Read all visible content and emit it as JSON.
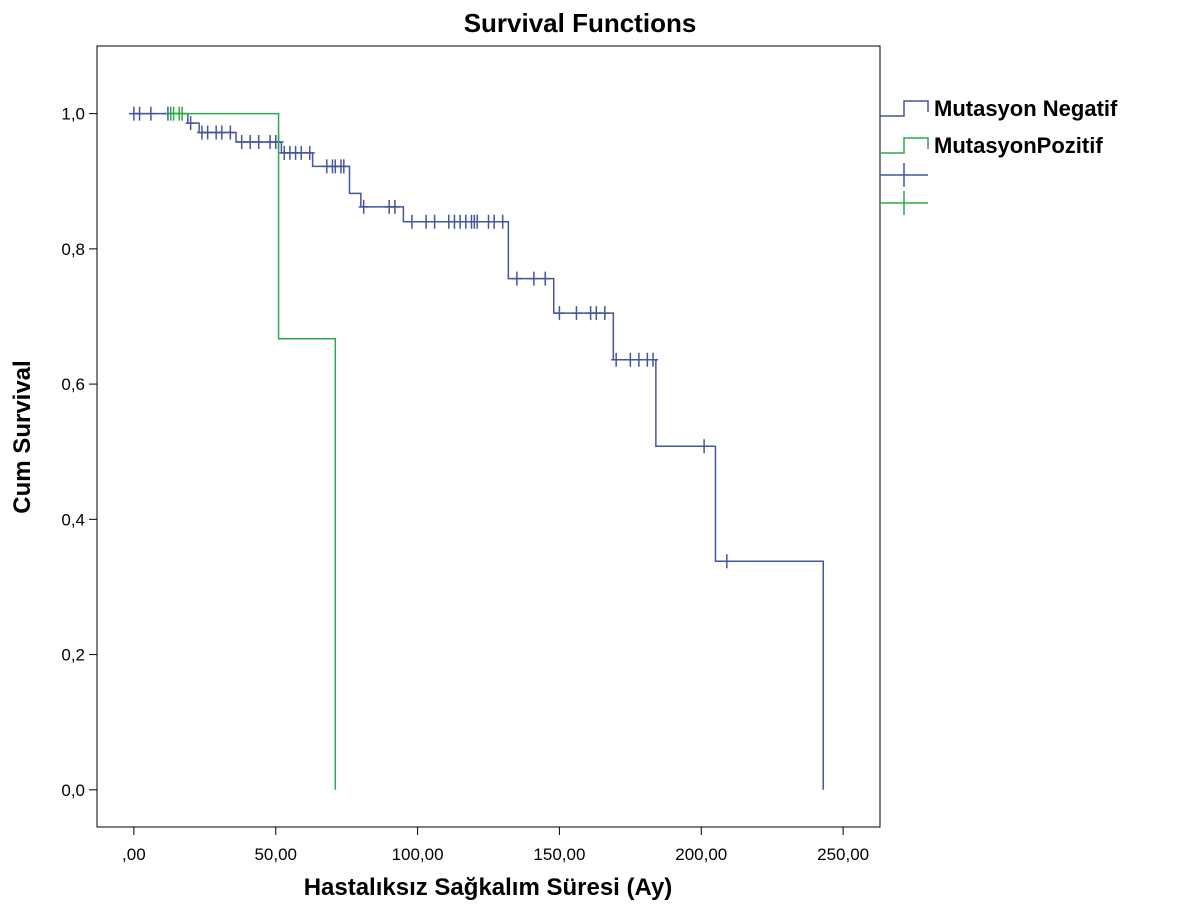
{
  "chart_data": {
    "type": "line",
    "subtype": "kaplan-meier step survival curve with censor ticks",
    "title": "Survival Functions",
    "xlabel": "Hastalıksız Sağkalım Süresi (Ay)",
    "ylabel": "Cum Survival",
    "xlim": [
      -13,
      263
    ],
    "ylim": [
      -0.055,
      1.1
    ],
    "x_ticks": [
      0,
      50,
      100,
      150,
      200,
      250
    ],
    "x_tick_labels": [
      ",00",
      "50,00",
      "100,00",
      "150,00",
      "200,00",
      "250,00"
    ],
    "y_ticks": [
      0,
      0.2,
      0.4,
      0.6,
      0.8,
      1.0
    ],
    "y_tick_labels": [
      "0,0",
      "0,2",
      "0,4",
      "0,6",
      "0,8",
      "1,0"
    ],
    "grid": false,
    "legend_position": "right-outside-top",
    "series": [
      {
        "name": "Mutasyon Negatif",
        "color": "#44569c",
        "steps": [
          [
            0,
            1.0
          ],
          [
            19,
            0.986
          ],
          [
            23,
            0.972
          ],
          [
            36,
            0.958
          ],
          [
            52,
            0.942
          ],
          [
            63,
            0.922
          ],
          [
            76,
            0.882
          ],
          [
            80,
            0.862
          ],
          [
            95,
            0.84
          ],
          [
            132,
            0.756
          ],
          [
            148,
            0.705
          ],
          [
            169,
            0.636
          ],
          [
            184,
            0.508
          ],
          [
            205,
            0.338
          ],
          [
            243,
            0.0
          ]
        ],
        "end_x": 243,
        "censored": [
          [
            0,
            1.0
          ],
          [
            2,
            1.0
          ],
          [
            6,
            1.0
          ],
          [
            12,
            1.0
          ],
          [
            20,
            0.986
          ],
          [
            24,
            0.972
          ],
          [
            26,
            0.972
          ],
          [
            29,
            0.972
          ],
          [
            31,
            0.972
          ],
          [
            34,
            0.972
          ],
          [
            38,
            0.958
          ],
          [
            41,
            0.958
          ],
          [
            44,
            0.958
          ],
          [
            48,
            0.958
          ],
          [
            50,
            0.958
          ],
          [
            51,
            0.958
          ],
          [
            53,
            0.942
          ],
          [
            55,
            0.942
          ],
          [
            57,
            0.942
          ],
          [
            59,
            0.942
          ],
          [
            62,
            0.942
          ],
          [
            68,
            0.922
          ],
          [
            70,
            0.922
          ],
          [
            71,
            0.922
          ],
          [
            73,
            0.922
          ],
          [
            74,
            0.922
          ],
          [
            81,
            0.862
          ],
          [
            90,
            0.862
          ],
          [
            92,
            0.862
          ],
          [
            98,
            0.84
          ],
          [
            103,
            0.84
          ],
          [
            106,
            0.84
          ],
          [
            111,
            0.84
          ],
          [
            113,
            0.84
          ],
          [
            115,
            0.84
          ],
          [
            117,
            0.84
          ],
          [
            119,
            0.84
          ],
          [
            120,
            0.84
          ],
          [
            121,
            0.84
          ],
          [
            125,
            0.84
          ],
          [
            127,
            0.84
          ],
          [
            130,
            0.84
          ],
          [
            135,
            0.756
          ],
          [
            141,
            0.756
          ],
          [
            145,
            0.756
          ],
          [
            150,
            0.705
          ],
          [
            156,
            0.705
          ],
          [
            161,
            0.705
          ],
          [
            163,
            0.705
          ],
          [
            166,
            0.705
          ],
          [
            170,
            0.636
          ],
          [
            175,
            0.636
          ],
          [
            178,
            0.636
          ],
          [
            181,
            0.636
          ],
          [
            183,
            0.636
          ],
          [
            201,
            0.508
          ],
          [
            209,
            0.338
          ]
        ]
      },
      {
        "name": "MutasyonPozitif",
        "color": "#2ea84a",
        "steps": [
          [
            0,
            1.0
          ],
          [
            51,
            0.667
          ],
          [
            71,
            0.0
          ]
        ],
        "start_x": 13,
        "end_x": 71,
        "censored": [
          [
            13,
            1.0
          ],
          [
            14,
            1.0
          ],
          [
            16,
            1.0
          ],
          [
            17,
            1.0
          ]
        ]
      }
    ]
  }
}
